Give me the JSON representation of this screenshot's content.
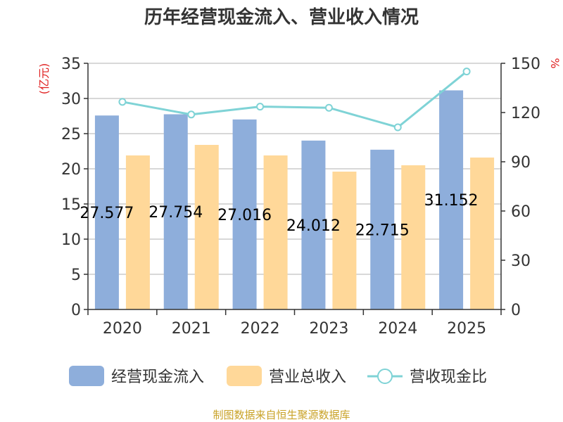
{
  "chart_data": {
    "type": "bar",
    "title": "历年经营现金流入、营业收入情况",
    "categories": [
      "2020",
      "2021",
      "2022",
      "2023",
      "2024",
      "2025"
    ],
    "series": [
      {
        "name": "经营现金流入",
        "type": "bar",
        "axis": "left",
        "color": "#8eaedb",
        "values": [
          27.577,
          27.754,
          27.016,
          24.012,
          22.715,
          31.152
        ],
        "labels": [
          "27.577",
          "27.754",
          "27.016",
          "24.012",
          "22.715",
          "31.152"
        ]
      },
      {
        "name": "营业总收入",
        "type": "bar",
        "axis": "left",
        "color": "#ffd899",
        "values": [
          21.9,
          23.4,
          21.9,
          19.6,
          20.5,
          21.6
        ]
      },
      {
        "name": "营收现金比",
        "type": "line",
        "axis": "right",
        "color": "#7fd3d6",
        "values": [
          126.5,
          118.8,
          123.6,
          122.9,
          111.0,
          145.0
        ]
      }
    ],
    "y_left": {
      "unit": "(亿元)",
      "min": 0,
      "max": 35,
      "ticks": [
        0,
        5,
        10,
        15,
        20,
        25,
        30,
        35
      ]
    },
    "y_right": {
      "unit": "%",
      "min": 0,
      "max": 150,
      "ticks": [
        0,
        30,
        60,
        90,
        120,
        150
      ]
    },
    "grid": true,
    "legend_position": "bottom"
  },
  "source_text": "制图数据来自恒生聚源数据库"
}
